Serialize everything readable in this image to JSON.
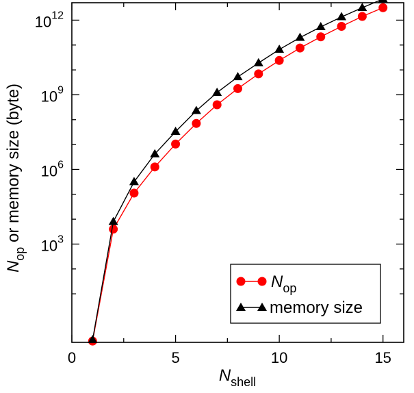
{
  "chart_data": {
    "type": "line",
    "xlim": [
      0,
      16
    ],
    "ylim_log10": [
      -0.95,
      12.7
    ],
    "y_scale": "log",
    "grid": false,
    "legend_position": "bottom-right",
    "xticks": [
      0,
      5,
      10,
      15
    ],
    "xtick_labels": [
      "0",
      "5",
      "10",
      "15"
    ],
    "yticks_log10": [
      3,
      6,
      9,
      12
    ],
    "ytick_base": "10",
    "ytick_exponents": [
      "3",
      "6",
      "9",
      "12"
    ],
    "xlabel": {
      "main": "N",
      "sub": "shell"
    },
    "ylabel": {
      "main": "N",
      "sub": "op",
      "rest": " or memory size (byte)"
    },
    "series": [
      {
        "name": "N",
        "name_sub": "op",
        "color": "#ff0000",
        "line_color": "#ff0000",
        "marker": "circle",
        "x": [
          1,
          2,
          3,
          4,
          5,
          6,
          7,
          8,
          9,
          10,
          11,
          12,
          13,
          14,
          15
        ],
        "log10_y": [
          -0.9,
          3.6,
          5.05,
          6.1,
          7.02,
          7.85,
          8.6,
          9.25,
          9.84,
          10.38,
          10.88,
          11.33,
          11.75,
          12.15,
          12.5
        ]
      },
      {
        "name": "memory size",
        "color": "#000000",
        "line_color": "#000000",
        "marker": "triangle",
        "x": [
          1,
          2,
          3,
          4,
          5,
          6,
          7,
          8,
          9,
          10,
          11,
          12,
          13,
          14,
          15
        ],
        "log10_y": [
          -0.85,
          3.9,
          5.5,
          6.62,
          7.52,
          8.36,
          9.09,
          9.72,
          10.28,
          10.82,
          11.3,
          11.73,
          12.13,
          12.5,
          12.85
        ]
      }
    ]
  }
}
